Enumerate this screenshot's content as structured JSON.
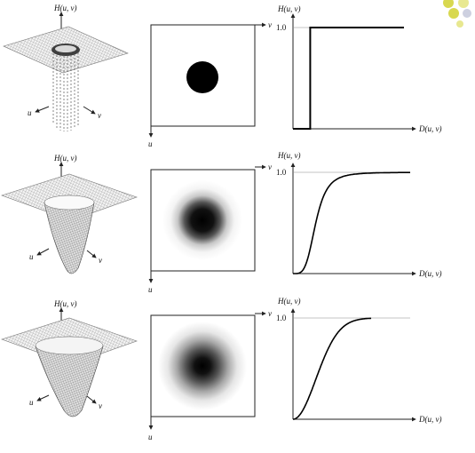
{
  "labels": {
    "surface_z": "H(u, v)",
    "surface_u": "u",
    "surface_v": "v",
    "image_u": "u",
    "image_v": "v",
    "plot_y": "H(u, v)",
    "plot_x": "D(u, v)",
    "plot_one": "1.0"
  },
  "corner_dots": {
    "colors": [
      "#d8d850",
      "#cdd0e0",
      "#e8e890"
    ]
  },
  "rows": [
    {
      "id": "ideal",
      "filter": "ideal",
      "blob": {
        "fill": "#000000"
      },
      "chart_data": {
        "type": "line",
        "x": [
          0,
          0.28,
          0.28,
          1.8
        ],
        "y": [
          0,
          0,
          1,
          1
        ],
        "ytick": "1.0",
        "xlabel": "D(u, v)",
        "ylabel": "H(u, v)"
      }
    },
    {
      "id": "butterworth",
      "filter": "butterworth",
      "blob": {
        "fill": "#000000"
      },
      "chart_data": {
        "type": "line",
        "model": "butterworth",
        "d0": 0.35,
        "order": 2,
        "xlabel": "D(u, v)",
        "ylabel": "H(u, v)",
        "ytick": "1.0"
      }
    },
    {
      "id": "gaussian",
      "filter": "gaussian",
      "blob": {
        "fill": "#000000"
      },
      "chart_data": {
        "type": "line",
        "model": "gaussian",
        "d0": 0.35,
        "xlabel": "D(u, v)",
        "ylabel": "H(u, v)",
        "ytick": "1.0"
      }
    }
  ]
}
